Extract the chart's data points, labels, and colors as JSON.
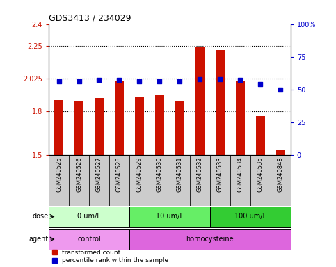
{
  "title": "GDS3413 / 234029",
  "samples": [
    "GSM240525",
    "GSM240526",
    "GSM240527",
    "GSM240528",
    "GSM240529",
    "GSM240530",
    "GSM240531",
    "GSM240532",
    "GSM240533",
    "GSM240534",
    "GSM240535",
    "GSM240848"
  ],
  "bar_values": [
    1.875,
    1.87,
    1.89,
    2.01,
    1.895,
    1.91,
    1.87,
    2.245,
    2.22,
    2.01,
    1.765,
    1.53
  ],
  "dot_values": [
    56,
    56,
    57,
    57,
    56,
    56,
    56,
    58,
    58,
    57,
    54,
    50
  ],
  "bar_color": "#cc1100",
  "dot_color": "#0000cc",
  "ylim_left": [
    1.5,
    2.4
  ],
  "ylim_right": [
    0,
    100
  ],
  "yticks_left": [
    1.5,
    1.8,
    2.025,
    2.25,
    2.4
  ],
  "ytick_labels_left": [
    "1.5",
    "1.8",
    "2.025",
    "2.25",
    "2.4"
  ],
  "yticks_right": [
    0,
    25,
    50,
    75,
    100
  ],
  "ytick_labels_right": [
    "0",
    "25",
    "50",
    "75",
    "100%"
  ],
  "hlines": [
    1.8,
    2.025,
    2.25
  ],
  "dose_groups": [
    {
      "label": "0 um/L",
      "start": 0,
      "end": 3,
      "color": "#ccffcc"
    },
    {
      "label": "10 um/L",
      "start": 4,
      "end": 7,
      "color": "#66ee66"
    },
    {
      "label": "100 um/L",
      "start": 8,
      "end": 11,
      "color": "#33cc33"
    }
  ],
  "agent_groups": [
    {
      "label": "control",
      "start": 0,
      "end": 3,
      "color": "#ee99ee"
    },
    {
      "label": "homocysteine",
      "start": 4,
      "end": 11,
      "color": "#dd66dd"
    }
  ],
  "sample_box_color": "#cccccc",
  "dose_label": "dose",
  "agent_label": "agent",
  "legend_items": [
    {
      "label": "transformed count",
      "color": "#cc1100"
    },
    {
      "label": "percentile rank within the sample",
      "color": "#0000cc"
    }
  ],
  "background_color": "#ffffff"
}
